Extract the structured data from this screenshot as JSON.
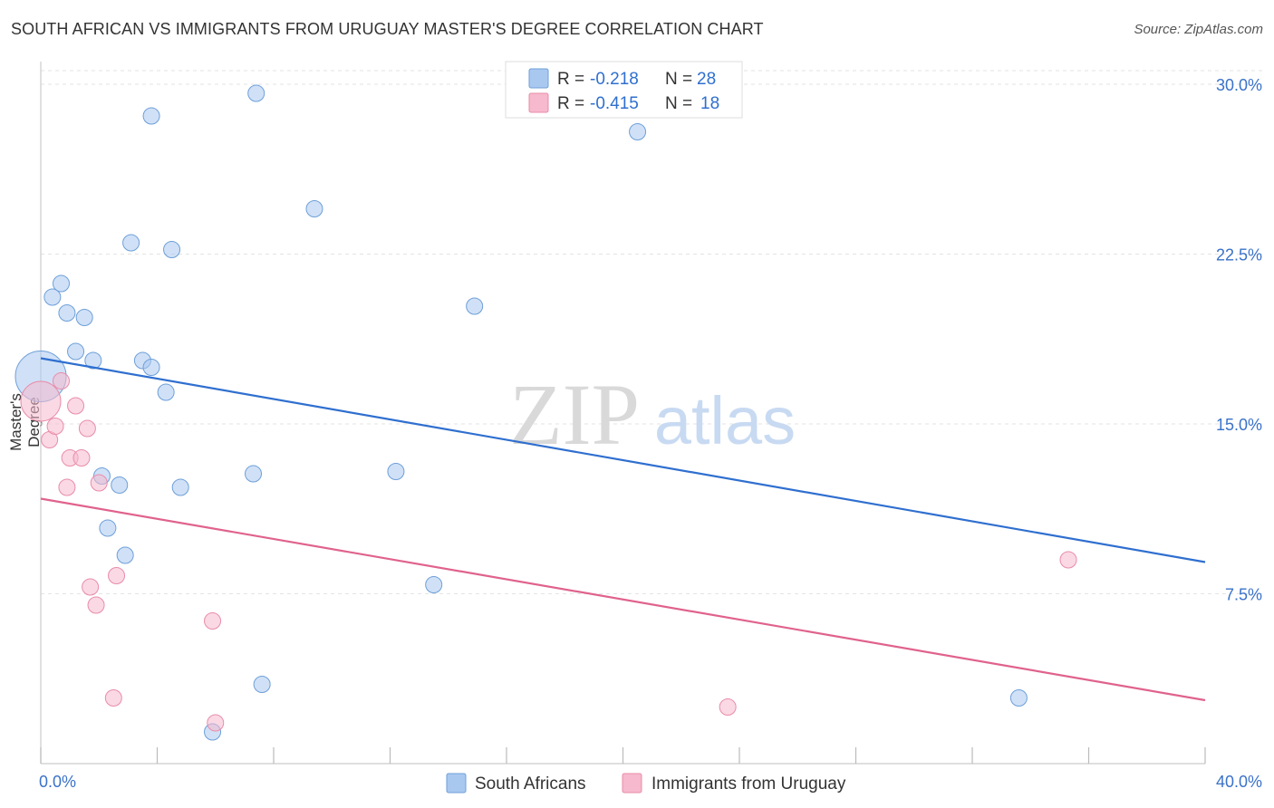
{
  "header": {
    "title": "SOUTH AFRICAN VS IMMIGRANTS FROM URUGUAY MASTER'S DEGREE CORRELATION CHART",
    "source": "Source: ZipAtlas.com"
  },
  "watermark": {
    "zip": "ZIP",
    "atlas": "atlas"
  },
  "legend_top": [
    {
      "r_label": "R =",
      "r_value": "-0.218",
      "n_label": "N =",
      "n_value": "28",
      "color": "#a9c8f0"
    },
    {
      "r_label": "R =",
      "r_value": "-0.415",
      "n_label": "N =",
      "n_value": "18",
      "color": "#f6b9cd"
    }
  ],
  "chart_data": {
    "type": "scatter",
    "title": "SOUTH AFRICAN VS IMMIGRANTS FROM URUGUAY MASTER'S DEGREE CORRELATION CHART",
    "xlabel": "",
    "ylabel": "Master's Degree",
    "xlim": [
      0,
      40
    ],
    "ylim": [
      0,
      31
    ],
    "x_tick_labels": [
      "0.0%",
      "40.0%"
    ],
    "y_ticks": [
      7.5,
      15.0,
      22.5,
      30.0
    ],
    "y_tick_labels": [
      "7.5%",
      "15.0%",
      "22.5%",
      "30.0%"
    ],
    "grid": true,
    "legend_position": "bottom-center",
    "series": [
      {
        "name": "South Africans",
        "color": "#a9c8f0",
        "stroke": "#6e9fd8",
        "line_color": "#2f6fcf",
        "trend": {
          "x": [
            0,
            40
          ],
          "y": [
            17.9,
            8.9
          ]
        },
        "points": [
          [
            0.0,
            17.1,
            28
          ],
          [
            0.4,
            20.6,
            9
          ],
          [
            0.7,
            21.2,
            9
          ],
          [
            0.9,
            19.9,
            9
          ],
          [
            1.2,
            18.2,
            9
          ],
          [
            1.5,
            19.7,
            9
          ],
          [
            1.8,
            17.8,
            9
          ],
          [
            2.1,
            12.7,
            9
          ],
          [
            2.3,
            10.4,
            9
          ],
          [
            2.7,
            12.3,
            9
          ],
          [
            2.9,
            9.2,
            9
          ],
          [
            3.1,
            23.0,
            9
          ],
          [
            3.5,
            17.8,
            9
          ],
          [
            3.8,
            28.6,
            9
          ],
          [
            3.8,
            17.5,
            9
          ],
          [
            4.3,
            16.4,
            9
          ],
          [
            4.5,
            22.7,
            9
          ],
          [
            4.8,
            12.2,
            9
          ],
          [
            5.9,
            1.4,
            9
          ],
          [
            7.3,
            12.8,
            9
          ],
          [
            7.6,
            3.5,
            9
          ],
          [
            7.4,
            29.6,
            9
          ],
          [
            9.4,
            24.5,
            9
          ],
          [
            12.2,
            12.9,
            9
          ],
          [
            14.9,
            20.2,
            9
          ],
          [
            13.5,
            7.9,
            9
          ],
          [
            20.5,
            27.9,
            9
          ],
          [
            33.6,
            2.9,
            9
          ]
        ]
      },
      {
        "name": "Immigrants from Uruguay",
        "color": "#f6b9cd",
        "stroke": "#e98ca9",
        "line_color": "#e0628d",
        "trend": {
          "x": [
            0,
            40
          ],
          "y": [
            11.7,
            2.8
          ]
        },
        "points": [
          [
            0.0,
            16.0,
            22
          ],
          [
            0.3,
            14.3,
            9
          ],
          [
            0.5,
            14.9,
            9
          ],
          [
            0.7,
            16.9,
            9
          ],
          [
            0.9,
            12.2,
            9
          ],
          [
            1.0,
            13.5,
            9
          ],
          [
            1.2,
            15.8,
            9
          ],
          [
            1.4,
            13.5,
            9
          ],
          [
            1.6,
            14.8,
            9
          ],
          [
            1.7,
            7.8,
            9
          ],
          [
            1.9,
            7.0,
            9
          ],
          [
            2.0,
            12.4,
            9
          ],
          [
            2.5,
            2.9,
            9
          ],
          [
            2.6,
            8.3,
            9
          ],
          [
            5.9,
            6.3,
            9
          ],
          [
            6.0,
            1.8,
            9
          ],
          [
            23.6,
            2.5,
            9
          ],
          [
            35.3,
            9.0,
            9
          ]
        ]
      }
    ]
  }
}
